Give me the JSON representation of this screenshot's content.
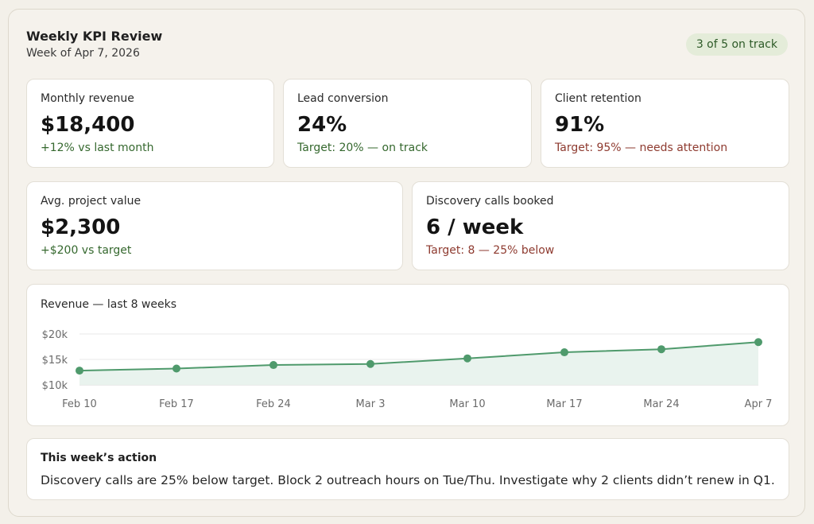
{
  "header": {
    "title": "Weekly KPI Review",
    "subtitle": "Week of Apr 7, 2026",
    "status": "3 of 5 on track"
  },
  "kpis": [
    {
      "label": "Monthly revenue",
      "value": "$18,400",
      "note": "+12% vs last month",
      "status": "good"
    },
    {
      "label": "Lead conversion",
      "value": "24%",
      "note": "Target: 20% — on track",
      "status": "good"
    },
    {
      "label": "Client retention",
      "value": "91%",
      "note": "Target: 95% — needs attention",
      "status": "bad"
    },
    {
      "label": "Avg. project value",
      "value": "$2,300",
      "note": "+$200 vs target",
      "status": "good"
    },
    {
      "label": "Discovery calls booked",
      "value": "6 / week",
      "note": "Target: 8 — 25% below",
      "status": "bad"
    }
  ],
  "chart_data": {
    "type": "area",
    "title": "Revenue — last 8 weeks",
    "categories": [
      "Feb 10",
      "Feb 17",
      "Feb 24",
      "Mar 3",
      "Mar 10",
      "Mar 17",
      "Mar 24",
      "Apr 7"
    ],
    "series": [
      {
        "values": [
          12800,
          13200,
          13900,
          14100,
          15200,
          16400,
          17000,
          18400
        ]
      }
    ],
    "y_ticks": [
      "$20k",
      "$15k",
      "$10k"
    ],
    "y_tick_values": [
      20000,
      15000,
      10000
    ],
    "ylim": [
      10000,
      20000
    ],
    "grid": true,
    "colors": {
      "line": "#4f9a6c",
      "fill": "#e9f3ee",
      "grid": "#e8e8e8"
    }
  },
  "action": {
    "title": "This week’s action",
    "body": "Discovery calls are 25% below target. Block 2 outreach hours on Tue/Thu. Investigate why 2 clients didn’t renew in Q1."
  }
}
